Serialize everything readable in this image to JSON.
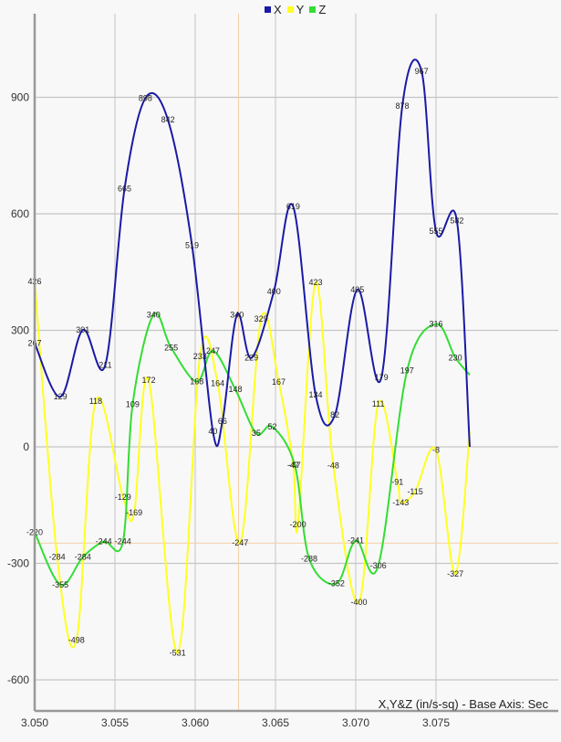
{
  "legend": {
    "items": [
      {
        "label": "X",
        "color": "#1a1aa6"
      },
      {
        "label": "Y",
        "color": "#ffff22"
      },
      {
        "label": "Z",
        "color": "#33dd33"
      }
    ]
  },
  "axis_title": "X,Y&Z (in/s-sq) - Base Axis: Sec",
  "chart_data": {
    "type": "line",
    "title": "",
    "xlabel": "Base Axis: Sec",
    "ylabel": "X,Y&Z (in/s-sq)",
    "xlim": [
      3.05,
      3.0771
    ],
    "ylim": [
      -680,
      1080
    ],
    "x_ticks": [
      "3.050",
      "3.055",
      "3.060",
      "3.065",
      "3.070",
      "3.075"
    ],
    "y_ticks": [
      "900",
      "600",
      "300",
      "0",
      "-300",
      "-600"
    ],
    "grid": true,
    "legend_position": "top",
    "reference_lines": {
      "vertical_x": 3.0627,
      "horizontal_y": -248
    },
    "series": [
      {
        "name": "X",
        "color": "#1a1aa6",
        "points": [
          [
            3.05,
            267
          ],
          [
            3.0516,
            129
          ],
          [
            3.053,
            301
          ],
          [
            3.0544,
            211
          ],
          [
            3.0556,
            665
          ],
          [
            3.0569,
            898
          ],
          [
            3.0583,
            842
          ],
          [
            3.0598,
            519
          ],
          [
            3.0611,
            40
          ],
          [
            3.0617,
            66
          ],
          [
            3.0626,
            340
          ],
          [
            3.0635,
            229
          ],
          [
            3.0649,
            400
          ],
          [
            3.0661,
            619
          ],
          [
            3.0675,
            134
          ],
          [
            3.0687,
            82
          ],
          [
            3.0701,
            405
          ],
          [
            3.0716,
            179
          ],
          [
            3.0729,
            878
          ],
          [
            3.0741,
            967
          ],
          [
            3.075,
            555
          ],
          [
            3.0763,
            582
          ],
          [
            3.0771,
            0
          ]
        ]
      },
      {
        "name": "Y",
        "color": "#ffff22",
        "points": [
          [
            3.05,
            426
          ],
          [
            3.0514,
            -284
          ],
          [
            3.0526,
            -498
          ],
          [
            3.0538,
            118
          ],
          [
            3.0555,
            -129
          ],
          [
            3.0562,
            -169
          ],
          [
            3.0571,
            172
          ],
          [
            3.0589,
            -531
          ],
          [
            3.0603,
            233
          ],
          [
            3.0614,
            164
          ],
          [
            3.0628,
            -247
          ],
          [
            3.0641,
            329
          ],
          [
            3.0652,
            167
          ],
          [
            3.0661,
            -47
          ],
          [
            3.0664,
            -200
          ],
          [
            3.0675,
            423
          ],
          [
            3.0686,
            -48
          ],
          [
            3.0702,
            -400
          ],
          [
            3.0714,
            111
          ],
          [
            3.0726,
            -91
          ],
          [
            3.0728,
            -143
          ],
          [
            3.0737,
            -115
          ],
          [
            3.075,
            -8
          ],
          [
            3.0762,
            -327
          ],
          [
            3.0771,
            40
          ]
        ]
      },
      {
        "name": "Z",
        "color": "#33dd33",
        "points": [
          [
            3.05,
            -220
          ],
          [
            3.0516,
            -355
          ],
          [
            3.053,
            -284
          ],
          [
            3.0543,
            -244
          ],
          [
            3.0555,
            -244
          ],
          [
            3.0561,
            109
          ],
          [
            3.0574,
            340
          ],
          [
            3.0585,
            255
          ],
          [
            3.0601,
            168
          ],
          [
            3.0611,
            247
          ],
          [
            3.0625,
            148
          ],
          [
            3.0638,
            35
          ],
          [
            3.0648,
            52
          ],
          [
            3.0662,
            -47
          ],
          [
            3.0671,
            -288
          ],
          [
            3.0688,
            -352
          ],
          [
            3.07,
            -241
          ],
          [
            3.0714,
            -306
          ],
          [
            3.0732,
            197
          ],
          [
            3.075,
            316
          ],
          [
            3.0762,
            230
          ],
          [
            3.0771,
            185
          ]
        ]
      }
    ]
  }
}
